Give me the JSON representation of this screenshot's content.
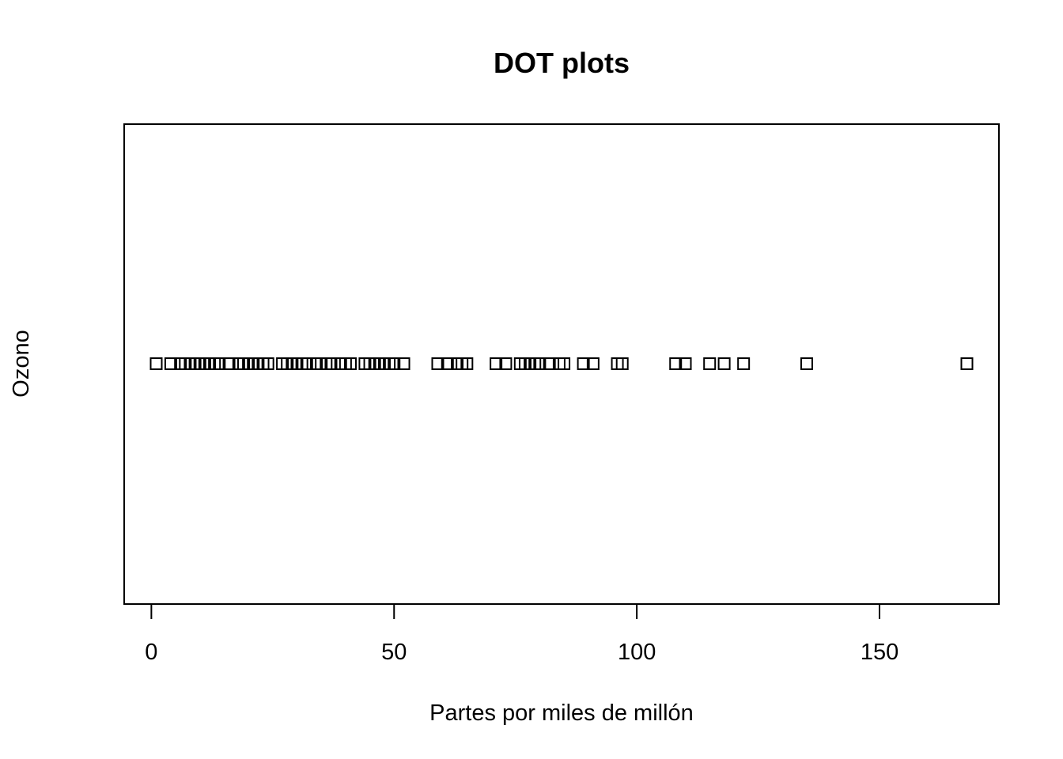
{
  "chart_data": {
    "type": "scatter",
    "title": "DOT plots",
    "xlabel": "Partes por miles de millón",
    "ylabel": "Ozono",
    "xlim": [
      -5.6,
      174.6
    ],
    "xticks": [
      0,
      50,
      100,
      150
    ],
    "xtick_labels": [
      "0",
      "50",
      "100",
      "150"
    ],
    "grid": false,
    "marker": "open-square",
    "values": [
      1,
      4,
      6,
      7,
      8,
      9,
      10,
      11,
      12,
      13,
      14,
      16,
      18,
      19,
      20,
      21,
      22,
      23,
      24,
      27,
      28,
      29,
      30,
      31,
      32,
      34,
      35,
      36,
      37,
      39,
      40,
      41,
      44,
      45,
      46,
      47,
      48,
      49,
      50,
      52,
      59,
      61,
      63,
      64,
      65,
      71,
      73,
      76,
      77,
      78,
      79,
      80,
      82,
      84,
      85,
      89,
      91,
      96,
      97,
      108,
      110,
      115,
      118,
      122,
      135,
      168
    ]
  }
}
